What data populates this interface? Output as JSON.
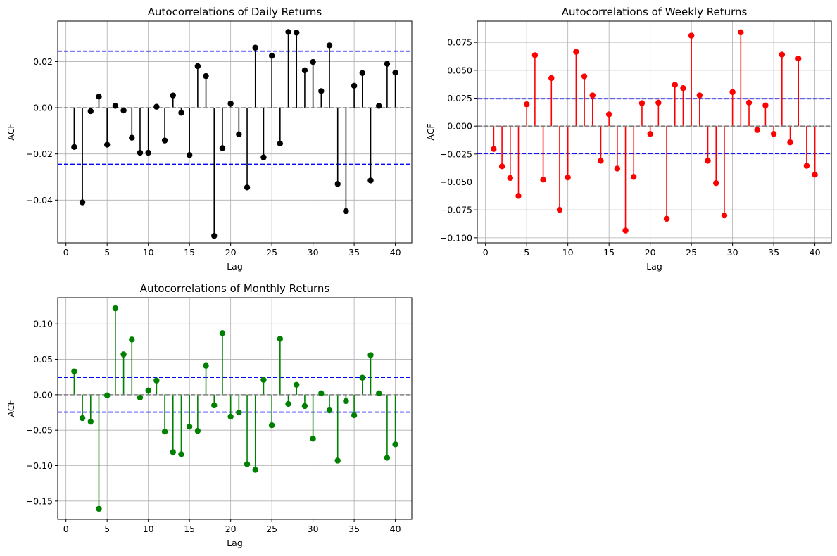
{
  "chart_data": [
    {
      "type": "stem",
      "title": "Autocorrelations of Daily Returns",
      "xlabel": "Lag",
      "ylabel": "ACF",
      "color": "#000000",
      "xlim": [
        -1,
        42
      ],
      "ylim": [
        -0.0585,
        0.0375
      ],
      "xticks": [
        0,
        5,
        10,
        15,
        20,
        25,
        30,
        35,
        40
      ],
      "yticks": [
        -0.04,
        -0.02,
        0.0,
        0.02
      ],
      "ytick_labels": [
        "−0.04",
        "−0.02",
        "0.00",
        "0.02"
      ],
      "conf_band": 0.0245,
      "grid": true,
      "lags": [
        1,
        2,
        3,
        4,
        5,
        6,
        7,
        8,
        9,
        10,
        11,
        12,
        13,
        14,
        15,
        16,
        17,
        18,
        19,
        20,
        21,
        22,
        23,
        24,
        25,
        26,
        27,
        28,
        29,
        30,
        31,
        32,
        33,
        34,
        35,
        36,
        37,
        38,
        39,
        40
      ],
      "values": [
        -0.017,
        -0.041,
        -0.0015,
        0.0048,
        -0.016,
        0.0008,
        -0.0012,
        -0.013,
        -0.0195,
        -0.0195,
        0.0004,
        -0.0142,
        0.0053,
        -0.0022,
        -0.0205,
        0.018,
        0.0137,
        -0.0555,
        -0.0175,
        0.0018,
        -0.0115,
        -0.0345,
        0.026,
        -0.0215,
        0.0225,
        -0.0155,
        0.0328,
        0.0325,
        0.0162,
        0.0198,
        0.0072,
        0.027,
        -0.033,
        -0.0448,
        0.0095,
        0.015,
        -0.0315,
        0.0008,
        0.019,
        0.0152
      ]
    },
    {
      "type": "stem",
      "title": "Autocorrelations of Weekly Returns",
      "xlabel": "Lag",
      "ylabel": "ACF",
      "color": "#ff0000",
      "xlim": [
        -1,
        42
      ],
      "ylim": [
        -0.1045,
        0.094
      ],
      "xticks": [
        0,
        5,
        10,
        15,
        20,
        25,
        30,
        35,
        40
      ],
      "yticks": [
        -0.1,
        -0.075,
        -0.05,
        -0.025,
        0.0,
        0.025,
        0.05,
        0.075
      ],
      "ytick_labels": [
        "−0.100",
        "−0.075",
        "−0.050",
        "−0.025",
        "0.000",
        "0.025",
        "0.050",
        "0.075"
      ],
      "conf_band": 0.0245,
      "grid": true,
      "lags": [
        1,
        2,
        3,
        4,
        5,
        6,
        7,
        8,
        9,
        10,
        11,
        12,
        13,
        14,
        15,
        16,
        17,
        18,
        19,
        20,
        21,
        22,
        23,
        24,
        25,
        26,
        27,
        28,
        29,
        30,
        31,
        32,
        33,
        34,
        35,
        36,
        37,
        38,
        39,
        40
      ],
      "values": [
        -0.0205,
        -0.036,
        -0.0465,
        -0.0625,
        0.0195,
        0.0635,
        -0.048,
        0.043,
        -0.075,
        -0.046,
        0.0665,
        0.0445,
        0.0275,
        -0.031,
        0.0105,
        -0.038,
        -0.0935,
        -0.0455,
        0.0205,
        -0.007,
        0.021,
        -0.083,
        0.037,
        0.034,
        0.081,
        0.0275,
        -0.031,
        -0.051,
        -0.08,
        0.0305,
        0.084,
        0.021,
        -0.0035,
        0.0185,
        -0.007,
        0.064,
        -0.0145,
        0.0605,
        -0.0355,
        -0.0435
      ]
    },
    {
      "type": "stem",
      "title": "Autocorrelations of Monthly Returns",
      "xlabel": "Lag",
      "ylabel": "ACF",
      "color": "#008000",
      "xlim": [
        -1,
        42
      ],
      "ylim": [
        -0.176,
        0.137
      ],
      "xticks": [
        0,
        5,
        10,
        15,
        20,
        25,
        30,
        35,
        40
      ],
      "yticks": [
        -0.15,
        -0.1,
        -0.05,
        0.0,
        0.05,
        0.1
      ],
      "ytick_labels": [
        "−0.15",
        "−0.10",
        "−0.05",
        "0.00",
        "0.05",
        "0.10"
      ],
      "conf_band": 0.0245,
      "grid": true,
      "lags": [
        1,
        2,
        3,
        4,
        5,
        6,
        7,
        8,
        9,
        10,
        11,
        12,
        13,
        14,
        15,
        16,
        17,
        18,
        19,
        20,
        21,
        22,
        23,
        24,
        25,
        26,
        27,
        28,
        29,
        30,
        31,
        32,
        33,
        34,
        35,
        36,
        37,
        38,
        39,
        40
      ],
      "values": [
        0.033,
        -0.033,
        -0.038,
        -0.161,
        -0.001,
        0.122,
        0.057,
        0.078,
        -0.004,
        0.006,
        0.02,
        -0.052,
        -0.081,
        -0.084,
        -0.045,
        -0.051,
        0.041,
        -0.015,
        0.087,
        -0.031,
        -0.025,
        -0.098,
        -0.106,
        0.021,
        -0.043,
        0.079,
        -0.013,
        0.014,
        -0.016,
        -0.062,
        0.002,
        -0.022,
        -0.093,
        -0.009,
        -0.029,
        0.024,
        0.056,
        0.002,
        -0.089,
        -0.07
      ]
    }
  ]
}
